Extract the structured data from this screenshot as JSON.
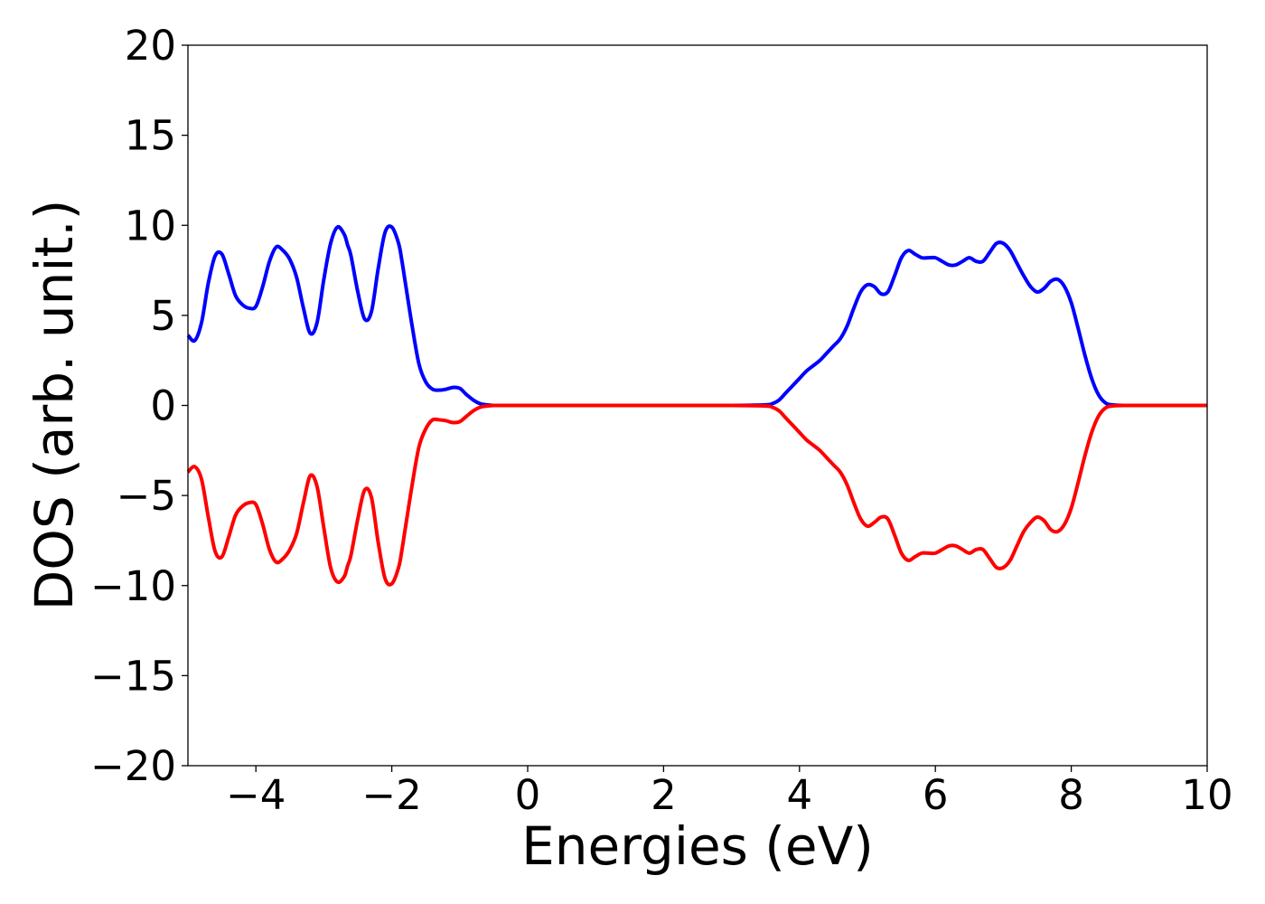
{
  "chart_data": {
    "type": "line",
    "xlabel": "Energies (eV)",
    "ylabel": "DOS (arb. unit.)",
    "xlim": [
      -5,
      10
    ],
    "ylim": [
      -20,
      20
    ],
    "xticks": [
      -4,
      -2,
      0,
      2,
      4,
      6,
      8,
      10
    ],
    "xtick_labels": [
      "−4",
      "−2",
      "0",
      "2",
      "4",
      "6",
      "8",
      "10"
    ],
    "yticks": [
      20,
      15,
      10,
      5,
      0,
      -5,
      -10,
      -15,
      -20
    ],
    "ytick_labels": [
      "20",
      "15",
      "10",
      "5",
      "0",
      "−5",
      "−10",
      "−15",
      "−20"
    ],
    "grid": false,
    "legend": "none",
    "series": [
      {
        "color": "#0000ff",
        "x": [
          -5.0,
          -4.9,
          -4.8,
          -4.7,
          -4.6,
          -4.5,
          -4.4,
          -4.3,
          -4.2,
          -4.1,
          -4.0,
          -3.9,
          -3.8,
          -3.7,
          -3.6,
          -3.5,
          -3.4,
          -3.3,
          -3.2,
          -3.1,
          -3.0,
          -2.9,
          -2.8,
          -2.7,
          -2.65,
          -2.6,
          -2.5,
          -2.4,
          -2.3,
          -2.2,
          -2.1,
          -2.0,
          -1.9,
          -1.85,
          -1.8,
          -1.7,
          -1.6,
          -1.5,
          -1.4,
          -1.3,
          -1.2,
          -1.1,
          -1.0,
          -0.9,
          -0.8,
          -0.7,
          -0.6,
          -0.5,
          -0.3,
          0.0,
          1.0,
          2.0,
          3.0,
          3.5,
          3.6,
          3.7,
          3.8,
          3.9,
          4.0,
          4.1,
          4.2,
          4.3,
          4.4,
          4.5,
          4.6,
          4.7,
          4.8,
          4.9,
          5.0,
          5.1,
          5.2,
          5.3,
          5.4,
          5.5,
          5.6,
          5.7,
          5.8,
          5.9,
          6.0,
          6.1,
          6.2,
          6.3,
          6.4,
          6.5,
          6.6,
          6.7,
          6.8,
          6.9,
          7.0,
          7.1,
          7.2,
          7.3,
          7.4,
          7.5,
          7.6,
          7.7,
          7.8,
          7.9,
          8.0,
          8.1,
          8.2,
          8.3,
          8.4,
          8.5,
          8.6,
          8.8,
          9.0,
          10.0
        ],
        "y": [
          3.9,
          3.6,
          4.6,
          6.8,
          8.3,
          8.4,
          7.3,
          6.1,
          5.6,
          5.4,
          5.5,
          6.6,
          8.0,
          8.8,
          8.6,
          8.1,
          7.1,
          5.4,
          4.0,
          4.6,
          7.0,
          9.0,
          9.9,
          9.5,
          8.9,
          8.3,
          6.3,
          4.8,
          5.2,
          7.6,
          9.6,
          9.9,
          9.0,
          8.0,
          6.8,
          4.4,
          2.3,
          1.3,
          0.9,
          0.85,
          0.9,
          1.0,
          0.95,
          0.6,
          0.3,
          0.1,
          0.03,
          0.0,
          0.0,
          0.0,
          0.0,
          0.0,
          0.0,
          0.03,
          0.1,
          0.3,
          0.7,
          1.1,
          1.5,
          1.9,
          2.2,
          2.5,
          2.9,
          3.3,
          3.7,
          4.4,
          5.4,
          6.3,
          6.7,
          6.6,
          6.2,
          6.3,
          7.2,
          8.2,
          8.6,
          8.4,
          8.2,
          8.2,
          8.2,
          8.0,
          7.8,
          7.8,
          8.0,
          8.2,
          8.0,
          8.0,
          8.5,
          9.0,
          9.0,
          8.6,
          7.9,
          7.2,
          6.6,
          6.3,
          6.5,
          6.9,
          7.0,
          6.6,
          5.7,
          4.3,
          2.8,
          1.5,
          0.6,
          0.15,
          0.03,
          0.0,
          0.0,
          0.0
        ]
      },
      {
        "color": "#ff0000",
        "x": [
          -5.0,
          -4.9,
          -4.8,
          -4.7,
          -4.6,
          -4.5,
          -4.4,
          -4.3,
          -4.2,
          -4.1,
          -4.0,
          -3.9,
          -3.8,
          -3.7,
          -3.6,
          -3.5,
          -3.4,
          -3.3,
          -3.2,
          -3.1,
          -3.0,
          -2.9,
          -2.8,
          -2.7,
          -2.65,
          -2.6,
          -2.5,
          -2.4,
          -2.3,
          -2.2,
          -2.1,
          -2.0,
          -1.9,
          -1.85,
          -1.8,
          -1.7,
          -1.6,
          -1.5,
          -1.4,
          -1.3,
          -1.2,
          -1.1,
          -1.0,
          -0.9,
          -0.8,
          -0.7,
          -0.6,
          -0.5,
          -0.3,
          0.0,
          1.0,
          2.0,
          3.0,
          3.5,
          3.6,
          3.7,
          3.8,
          3.9,
          4.0,
          4.1,
          4.2,
          4.3,
          4.4,
          4.5,
          4.6,
          4.7,
          4.8,
          4.9,
          5.0,
          5.1,
          5.2,
          5.3,
          5.4,
          5.5,
          5.6,
          5.7,
          5.8,
          5.9,
          6.0,
          6.1,
          6.2,
          6.3,
          6.4,
          6.5,
          6.6,
          6.7,
          6.8,
          6.9,
          7.0,
          7.1,
          7.2,
          7.3,
          7.4,
          7.5,
          7.6,
          7.7,
          7.8,
          7.9,
          8.0,
          8.1,
          8.2,
          8.3,
          8.4,
          8.5,
          8.6,
          8.8,
          9.0,
          10.0
        ],
        "y": [
          -3.7,
          -3.4,
          -4.1,
          -6.2,
          -8.1,
          -8.4,
          -7.3,
          -6.1,
          -5.6,
          -5.4,
          -5.5,
          -6.6,
          -8.0,
          -8.7,
          -8.5,
          -8.0,
          -7.1,
          -5.4,
          -3.9,
          -4.5,
          -6.8,
          -9.0,
          -9.8,
          -9.5,
          -8.9,
          -8.3,
          -6.3,
          -4.7,
          -5.1,
          -7.6,
          -9.6,
          -9.9,
          -9.0,
          -8.0,
          -6.8,
          -4.4,
          -2.3,
          -1.3,
          -0.8,
          -0.8,
          -0.85,
          -0.95,
          -0.9,
          -0.6,
          -0.3,
          -0.1,
          -0.03,
          0.0,
          0.0,
          0.0,
          0.0,
          0.0,
          0.0,
          -0.03,
          -0.1,
          -0.3,
          -0.7,
          -1.1,
          -1.5,
          -1.9,
          -2.2,
          -2.5,
          -2.9,
          -3.3,
          -3.7,
          -4.4,
          -5.4,
          -6.3,
          -6.7,
          -6.5,
          -6.2,
          -6.3,
          -7.2,
          -8.2,
          -8.6,
          -8.4,
          -8.2,
          -8.2,
          -8.2,
          -8.0,
          -7.8,
          -7.8,
          -8.0,
          -8.2,
          -8.0,
          -8.0,
          -8.5,
          -9.0,
          -9.0,
          -8.6,
          -7.8,
          -7.0,
          -6.5,
          -6.2,
          -6.4,
          -6.9,
          -7.0,
          -6.6,
          -5.7,
          -4.3,
          -2.8,
          -1.5,
          -0.6,
          -0.15,
          -0.03,
          0.0,
          0.0,
          0.0
        ]
      }
    ]
  }
}
